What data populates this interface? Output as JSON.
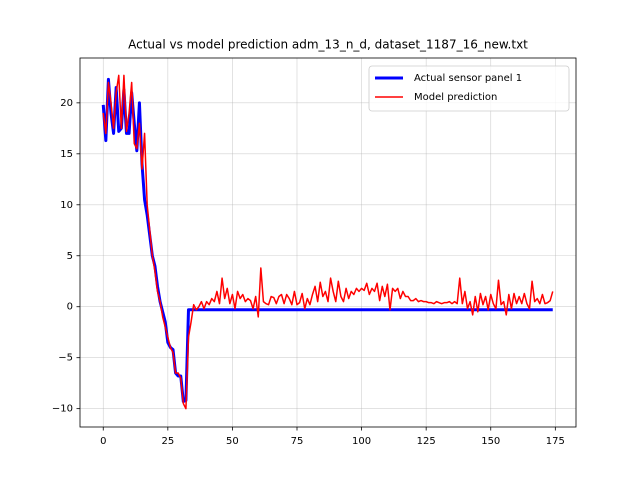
{
  "chart_data": {
    "type": "line",
    "title": "Actual vs model prediction adm_13_n_d, dataset_1187_16_new.txt",
    "xlim": [
      -9,
      183
    ],
    "xticks": [
      0,
      25,
      50,
      75,
      100,
      125,
      150,
      175
    ],
    "ylim": [
      -11.8,
      24.4
    ],
    "yticks": [
      {
        "value": -10,
        "label": "−10"
      },
      {
        "value": -5,
        "label": "−5"
      },
      0,
      5,
      10,
      15,
      20
    ],
    "grid": true,
    "legend": "upper right",
    "series": [
      {
        "name": "Actual sensor panel 1",
        "color": "#0000ff",
        "width": 3,
        "values": [
          19.8,
          16.3,
          22.3,
          19,
          17,
          21.5,
          17.2,
          17.5,
          21.3,
          17,
          17,
          21,
          18,
          15.3,
          20,
          14,
          10.5,
          9,
          7,
          5,
          4,
          2,
          0.5,
          -0.5,
          -1.5,
          -3.5,
          -4,
          -4.2,
          -6.5,
          -6.8,
          -6.8,
          -9.3,
          -9.2,
          -0.3,
          -0.3,
          -0.3,
          -0.3,
          -0.3,
          -0.3,
          -0.3,
          -0.3,
          -0.3,
          -0.3,
          -0.3,
          -0.3,
          -0.3,
          -0.3,
          -0.3,
          -0.3,
          -0.3,
          -0.3,
          -0.3,
          -0.3,
          -0.3,
          -0.3,
          -0.3,
          -0.3,
          -0.3,
          -0.3,
          -0.3,
          -0.3,
          -0.3,
          -0.3,
          -0.3,
          -0.3,
          -0.3,
          -0.3,
          -0.3,
          -0.3,
          -0.3,
          -0.3,
          -0.3,
          -0.3,
          -0.3,
          -0.3,
          -0.3,
          -0.3,
          -0.3,
          -0.3,
          -0.3,
          -0.3,
          -0.3,
          -0.3,
          -0.3,
          -0.3,
          -0.3,
          -0.3,
          -0.3,
          -0.3,
          -0.3,
          -0.3,
          -0.3,
          -0.3,
          -0.3,
          -0.3,
          -0.3,
          -0.3,
          -0.3,
          -0.3,
          -0.3,
          -0.3,
          -0.3,
          -0.3,
          -0.3,
          -0.3,
          -0.3,
          -0.3,
          -0.3,
          -0.3,
          -0.3,
          -0.3,
          -0.3,
          -0.3,
          -0.3,
          -0.3,
          -0.3,
          -0.3,
          -0.3,
          -0.3,
          -0.3,
          -0.3,
          -0.3,
          -0.3,
          -0.3,
          -0.3,
          -0.3,
          -0.3,
          -0.3,
          -0.3,
          -0.3,
          -0.3,
          -0.3,
          -0.3,
          -0.3,
          -0.3,
          -0.3,
          -0.3,
          -0.3,
          -0.3,
          -0.3,
          -0.3,
          -0.3,
          -0.3,
          -0.3,
          -0.3,
          -0.3,
          -0.3,
          -0.3,
          -0.3,
          -0.3,
          -0.3,
          -0.3,
          -0.3,
          -0.3,
          -0.3,
          -0.3,
          -0.3,
          -0.3,
          -0.3,
          -0.3,
          -0.3,
          -0.3,
          -0.3,
          -0.3,
          -0.3,
          -0.3,
          -0.3,
          -0.3,
          -0.3,
          -0.3,
          -0.3,
          -0.3,
          -0.3,
          -0.3,
          -0.3
        ]
      },
      {
        "name": "Model prediction",
        "color": "#ff0000",
        "width": 1.5,
        "values": [
          19,
          17,
          22,
          20,
          17.5,
          21,
          22.7,
          17.5,
          22.7,
          17.2,
          19,
          22,
          16,
          15.5,
          18,
          13.5,
          17,
          10,
          7.5,
          5,
          3.5,
          1.5,
          0.5,
          -1,
          -2,
          -3,
          -4,
          -4.5,
          -6.5,
          -6.5,
          -7,
          -9.5,
          -10,
          -3,
          -1.5,
          0.2,
          -0.3,
          0,
          0.5,
          -0.2,
          0.5,
          0.2,
          0.8,
          0.5,
          1.5,
          0.3,
          2.8,
          0.8,
          1.8,
          0.3,
          1.2,
          -0.2,
          1.5,
          0.8,
          1.2,
          0.5,
          0.8,
          0.6,
          -0.2,
          1.0,
          -1.0,
          3.8,
          0.5,
          0.3,
          0.2,
          1.0,
          0.9,
          0.3,
          1.0,
          1.2,
          0.3,
          1.2,
          0.8,
          0.2,
          1.5,
          0.2,
          0.4,
          1.3,
          -0.2,
          0.8,
          0.2,
          1.2,
          2.0,
          0.5,
          2.4,
          1.0,
          1.5,
          0.5,
          2.8,
          1.5,
          0.5,
          2.5,
          1.0,
          0.5,
          1.8,
          0.8,
          1.5,
          1.2,
          1.8,
          1.5,
          1.8,
          1.6,
          2.3,
          1.2,
          1.8,
          1.5,
          2.3,
          0.6,
          2.0,
          1.0,
          2.2,
          -0.3,
          1.8,
          1.5,
          1.8,
          0.8,
          1.5,
          1.0,
          1.0,
          0.6,
          0.6,
          0.8,
          0.5,
          0.6,
          0.5,
          0.5,
          0.4,
          0.4,
          0.3,
          0.5,
          0.4,
          0.3,
          0.4,
          0.4,
          0.5,
          0.3,
          0.5,
          0.3,
          2.8,
          0.3,
          1.5,
          -0.2,
          0.5,
          -0.8,
          1.0,
          -0.5,
          1.3,
          0.2,
          1.0,
          -0.3,
          1.2,
          0.3,
          -0.2,
          2.6,
          0.2,
          0.5,
          -0.8,
          1.2,
          -0.2,
          1.3,
          0.3,
          1.0,
          0.3,
          1.3,
          0.3,
          -0.2,
          2.5,
          0.5,
          0.8,
          0.3,
          1.2,
          0.3,
          0.4,
          0.6,
          1.5
        ]
      }
    ]
  }
}
